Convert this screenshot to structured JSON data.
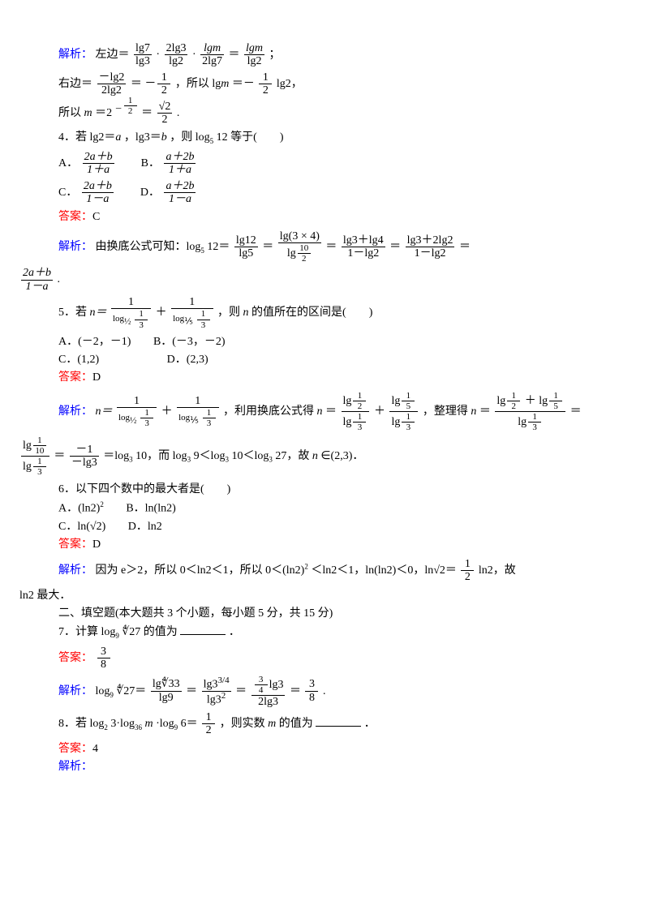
{
  "colors": {
    "blue": "#0000ff",
    "red": "#ff0000",
    "text": "#000000",
    "bg": "#ffffff"
  },
  "t": {
    "jie": "解析：",
    "ans": "答案：",
    "l1a": "左边＝",
    "l1b": "；",
    "l2a": "右边＝",
    "l2b": "＝",
    "l2c": "，所以 lg",
    "l2d": "m",
    "l2e": "＝－",
    "l2f": "lg2，",
    "l3a": "所以 ",
    "l3b": "m",
    "l3c": "＝2",
    "l3d": "＝",
    "l3e": ".",
    "q4a": "4．若 lg2＝",
    "q4b": "a",
    "q4c": "，lg3＝",
    "q4d": "b",
    "q4e": "，则 log",
    "q4f": "12 等于(　　)",
    "q4A": "A．",
    "q4B": "B．",
    "q4C": "C．",
    "q4D": "D．",
    "ans4": "C",
    "s4a": "由换底公式可知：log",
    "s4b": "12＝",
    "s4c": "＝",
    "s4d": "＝",
    "s4e": "＝",
    "s4end": ".",
    "q5a": "5．若 ",
    "q5b": "，则 ",
    "q5c": "n",
    "q5d": " 的值所在的区间是(　　)",
    "q5A": "A．(－2，－1)",
    "q5B": "B．(－3，－2)",
    "q5C": "C．(1,2)",
    "q5D": "D．(2,3)",
    "ans5": "D",
    "s5a": "，利用换底公式得 ",
    "s5b": "n",
    "s5c": "＝",
    "s5d": "＋",
    "s5e": "，整理得 ",
    "s5f": "＝",
    "s5g": "＝log",
    "s5h": "10，而 log",
    "s5i": "9＜log",
    "s5j": "10＜log",
    "s5k": "27，故 ",
    "s5l": "∈(2,3)．",
    "q6a": "6．以下四个数中的最大者是(　　)",
    "q6A": "A．(ln2)",
    "q6B": "B．ln(ln2)",
    "q6C": "C．ln(√2)",
    "q6D": "D．ln2",
    "ans6": "D",
    "s6a": "因为 e＞2，所以 0＜ln2＜1，所以 0＜(ln2)",
    "s6b": "＜ln2＜1，ln(ln2)＜0，ln√2＝",
    "s6c": "ln2，故",
    "s6d": "ln2 最大．",
    "sec2": "二、填空题(本大题共 3 个小题，每小题 5 分，共 15 分)",
    "q7a": "7．计算 log",
    "q7b": "∜27 的值为",
    "q7c": "．",
    "ans7f": "3",
    "ans7d": "8",
    "s7a": "log",
    "s7b": "∜27＝",
    "s7c": "＝",
    "s7d": "＝",
    "s7e": "＝",
    "s7end": ".",
    "q8a": "8．若 log",
    "q8b": "3·log",
    "q8c": "m",
    "q8d": "·log",
    "q8e": "6＝",
    "q8f": "，则实数 ",
    "q8g": " 的值为",
    "q8h": "．",
    "ans8": "4",
    "f": {
      "n1": "lg7",
      "d1": "lg3",
      "n2": "2lg3",
      "d2": "lg2",
      "n3": "lgm",
      "d3": "2lg7",
      "n4": "lgm",
      "d4": "lg2",
      "n5": "－lg2",
      "d5": "2lg2",
      "n6": "1",
      "d6": "2",
      "n7": "1",
      "d7": "2",
      "n8": "1",
      "d8": "2",
      "n9": "√2",
      "d9": "2",
      "A4n": "2a＋b",
      "A4d": "1＋a",
      "B4n": "a＋2b",
      "B4d": "1＋a",
      "C4n": "2a＋b",
      "C4d": "1－a",
      "D4n": "a＋2b",
      "D4d": "1－a",
      "s4_1n": "lg12",
      "s4_1d": "lg5",
      "s4_2n": "lg(3 × 4)",
      "s4_2dn": "10",
      "s4_2dd": "2",
      "s4_2dpre": "lg",
      "s4_3n": "lg3＋lg4",
      "s4_3d": "1－lg2",
      "s4_4n": "lg3＋2lg2",
      "s4_4d": "1－lg2",
      "s4_5n": "2a＋b",
      "s4_5d": "1－a",
      "q5en": "n＝",
      "q5f1n": "1",
      "q5f1d_pre": "log",
      "q5f1d_b": "1/2",
      "q5f1d_a": "1",
      "q5f1d_ad": "3",
      "q5plus": "＋",
      "s5_big1n": "lg",
      "s5_big1nn": "1",
      "s5_big1nd": "2",
      "s5_big1d": "lg",
      "s5_big1dn": "1",
      "s5_big1dd": "3",
      "s5_big2nn": "1",
      "s5_big2nd": "5",
      "s5_topn": "1",
      "s5_topd": "10",
      "s5_res": "－1",
      "s5_res_d": "－lg3",
      "s6fn": "1",
      "s6fd": "2",
      "s7_1n": "lg∜33",
      "s7_1d": "lg9",
      "s7_2n_pre": "lg3",
      "s7_2n_exp": "3/4",
      "s7_2d": "lg3",
      "s7_2d_exp": "2",
      "s7_3n_top": "3",
      "s7_3n_bot": "4",
      "s7_3n_suf": "lg3",
      "s7_3d": "2lg3",
      "s7_4n": "3",
      "s7_4d": "8",
      "q8fn": "1",
      "q8fd": "2"
    }
  }
}
